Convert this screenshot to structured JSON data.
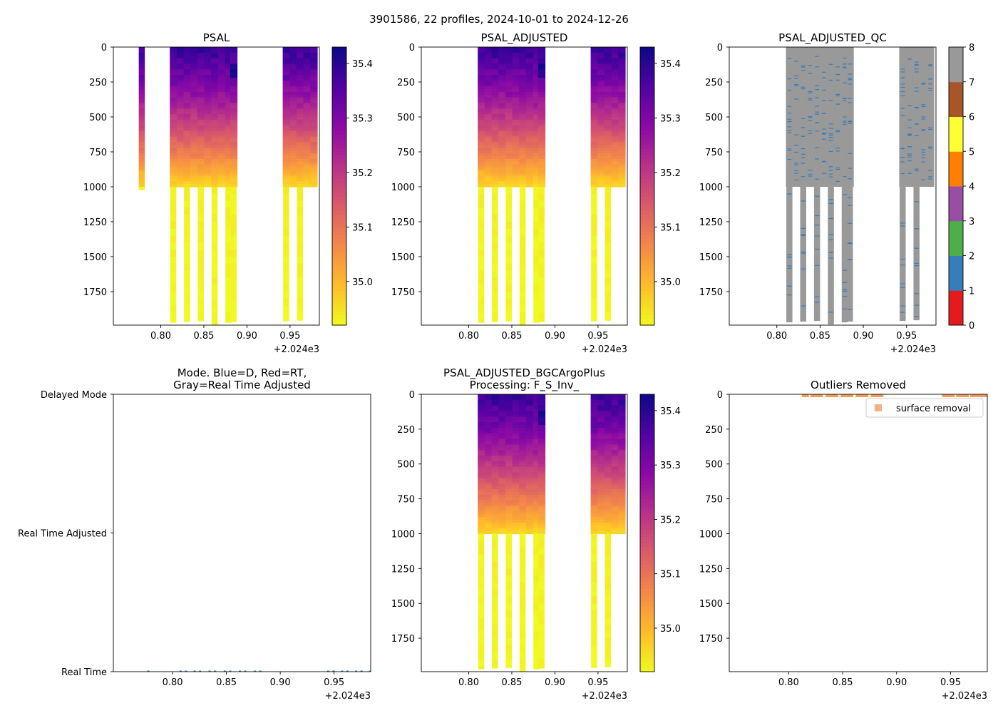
{
  "figure": {
    "suptitle": "3901586, 22 profiles, 2024-10-01 to 2024-12-26"
  },
  "colors": {
    "plasma": [
      "#0d0887",
      "#5302a3",
      "#8b0aa5",
      "#b83289",
      "#db5c68",
      "#f48849",
      "#febd2a",
      "#f0f921"
    ],
    "qc": [
      "#e41a1c",
      "#377eb8",
      "#4daf4a",
      "#984ea3",
      "#ff7f00",
      "#ffff33",
      "#a65628",
      "#f781bf",
      "#999999"
    ],
    "mode_points": "#1f77b4",
    "outlier_points": "#f39a55",
    "outlier_legend_marker": "#f6b183"
  },
  "chart_data": [
    {
      "id": "psal",
      "type": "heatmap",
      "title": "PSAL",
      "xlim": [
        0.745,
        0.984
      ],
      "ylim": [
        0,
        1990
      ],
      "y_inverted": true,
      "xticks": [
        0.8,
        0.85,
        0.9,
        0.95
      ],
      "xtick_labels": [
        "0.80",
        "0.85",
        "0.90",
        "0.95"
      ],
      "x_offset_label": "+2.024e3",
      "yticks": [
        0,
        250,
        500,
        750,
        1000,
        1250,
        1500,
        1750
      ],
      "ytick_labels": [
        "0",
        "250",
        "500",
        "750",
        "1000",
        "1250",
        "1500",
        "1750"
      ],
      "colorbar": {
        "range": [
          34.92,
          35.43
        ],
        "ticks": [
          35.0,
          35.1,
          35.2,
          35.3,
          35.4
        ],
        "tick_labels": [
          "35.0",
          "35.1",
          "35.2",
          "35.3",
          "35.4"
        ]
      },
      "profiles": [
        {
          "x": 0.778,
          "max_depth": 1020
        },
        {
          "x": 0.8145,
          "max_depth": 1000,
          "deep_x": 0.8145,
          "deep_depth": 1970
        },
        {
          "x": 0.8225,
          "max_depth": 1000
        },
        {
          "x": 0.8305,
          "max_depth": 1000,
          "deep_x": 0.8305,
          "deep_depth": 1965
        },
        {
          "x": 0.8385,
          "max_depth": 1000
        },
        {
          "x": 0.8465,
          "max_depth": 1000,
          "deep_x": 0.8465,
          "deep_depth": 1960
        },
        {
          "x": 0.8545,
          "max_depth": 1000
        },
        {
          "x": 0.8625,
          "max_depth": 1000,
          "deep_x": 0.8625,
          "deep_depth": 1985
        },
        {
          "x": 0.8705,
          "max_depth": 1000
        },
        {
          "x": 0.8785,
          "max_depth": 1000,
          "deep_x": 0.8785,
          "deep_depth": 1970
        },
        {
          "x": 0.8845,
          "max_depth": 1000,
          "deep_x": 0.8845,
          "deep_depth": 1965
        },
        {
          "x": 0.9455,
          "max_depth": 1000,
          "deep_x": 0.9455,
          "deep_depth": 1960
        },
        {
          "x": 0.9535,
          "max_depth": 1000
        },
        {
          "x": 0.9615,
          "max_depth": 1000,
          "deep_x": 0.9615,
          "deep_depth": 1955
        },
        {
          "x": 0.9695,
          "max_depth": 1000
        },
        {
          "x": 0.9775,
          "max_depth": 1000
        }
      ]
    },
    {
      "id": "psal_adjusted",
      "type": "heatmap",
      "title": "PSAL_ADJUSTED",
      "xlim": [
        0.745,
        0.984
      ],
      "ylim": [
        0,
        1990
      ],
      "y_inverted": true,
      "xticks": [
        0.8,
        0.85,
        0.9,
        0.95
      ],
      "xtick_labels": [
        "0.80",
        "0.85",
        "0.90",
        "0.95"
      ],
      "x_offset_label": "+2.024e3",
      "yticks": [
        0,
        250,
        500,
        750,
        1000,
        1250,
        1500,
        1750
      ],
      "ytick_labels": [
        "0",
        "250",
        "500",
        "750",
        "1000",
        "1250",
        "1500",
        "1750"
      ],
      "colorbar": {
        "range": [
          34.92,
          35.43
        ],
        "ticks": [
          35.0,
          35.1,
          35.2,
          35.3,
          35.4
        ],
        "tick_labels": [
          "35.0",
          "35.1",
          "35.2",
          "35.3",
          "35.4"
        ]
      }
    },
    {
      "id": "psal_adjusted_qc",
      "type": "heatmap",
      "title": "PSAL_ADJUSTED_QC",
      "xlim": [
        0.745,
        0.984
      ],
      "ylim": [
        0,
        1990
      ],
      "y_inverted": true,
      "xticks": [
        0.8,
        0.85,
        0.9,
        0.95
      ],
      "xtick_labels": [
        "0.80",
        "0.85",
        "0.90",
        "0.95"
      ],
      "x_offset_label": "+2.024e3",
      "yticks": [
        0,
        250,
        500,
        750,
        1000,
        1250,
        1500,
        1750
      ],
      "ytick_labels": [
        "0",
        "250",
        "500",
        "750",
        "1000",
        "1250",
        "1500",
        "1750"
      ],
      "colorbar": {
        "range": [
          0,
          8
        ],
        "ticks": [
          0,
          1,
          2,
          3,
          4,
          5,
          6,
          7,
          8
        ],
        "tick_labels": [
          "0",
          "1",
          "2",
          "3",
          "4",
          "5",
          "6",
          "7",
          "8"
        ]
      },
      "dominant_flag": 8,
      "secondary_flag": 1
    },
    {
      "id": "mode",
      "type": "scatter",
      "title": "Mode. Blue=D, Red=RT,\nGray=Real Time Adjusted",
      "title_lines": [
        "Mode. Blue=D, Red=RT,",
        "Gray=Real Time Adjusted"
      ],
      "xlim": [
        0.745,
        0.984
      ],
      "ylim": [
        0,
        2
      ],
      "xticks": [
        0.8,
        0.85,
        0.9,
        0.95
      ],
      "xtick_labels": [
        "0.80",
        "0.85",
        "0.90",
        "0.95"
      ],
      "x_offset_label": "+2.024e3",
      "yticks": [
        2,
        1,
        0
      ],
      "ytick_labels": [
        "Delayed Mode",
        "Real Time Adjusted",
        "Real Time"
      ],
      "points_x": [
        0.7775,
        0.8075,
        0.8125,
        0.8205,
        0.8255,
        0.8345,
        0.8395,
        0.8485,
        0.8535,
        0.8625,
        0.8675,
        0.8765,
        0.8815,
        0.9445,
        0.9495,
        0.9575,
        0.9625,
        0.9705,
        0.9755,
        0.9835
      ],
      "points_y": [
        0,
        0,
        0,
        0,
        0,
        0,
        0,
        0,
        0,
        0,
        0,
        0,
        0,
        0,
        0,
        0,
        0,
        0,
        0,
        0
      ]
    },
    {
      "id": "bgc_processing",
      "type": "heatmap",
      "title_lines": [
        "PSAL_ADJUSTED_BGCArgoPlus",
        "Processing: F_S_Inv_"
      ],
      "xlim": [
        0.745,
        0.984
      ],
      "ylim": [
        0,
        1990
      ],
      "y_inverted": true,
      "xticks": [
        0.8,
        0.85,
        0.9,
        0.95
      ],
      "xtick_labels": [
        "0.80",
        "0.85",
        "0.90",
        "0.95"
      ],
      "x_offset_label": "+2.024e3",
      "yticks": [
        0,
        250,
        500,
        750,
        1000,
        1250,
        1500,
        1750
      ],
      "ytick_labels": [
        "0",
        "250",
        "500",
        "750",
        "1000",
        "1250",
        "1500",
        "1750"
      ],
      "colorbar": {
        "range": [
          34.92,
          35.43
        ],
        "ticks": [
          35.0,
          35.1,
          35.2,
          35.3,
          35.4
        ],
        "tick_labels": [
          "35.0",
          "35.1",
          "35.2",
          "35.3",
          "35.4"
        ]
      }
    },
    {
      "id": "outliers",
      "type": "scatter",
      "title": "Outliers Removed",
      "xlim": [
        0.745,
        0.984
      ],
      "ylim": [
        0,
        1990
      ],
      "y_inverted": true,
      "xticks": [
        0.8,
        0.85,
        0.9,
        0.95
      ],
      "xtick_labels": [
        "0.80",
        "0.85",
        "0.90",
        "0.95"
      ],
      "x_offset_label": "+2.024e3",
      "yticks": [
        0,
        250,
        500,
        750,
        1000,
        1250,
        1500,
        1750
      ],
      "ytick_labels": [
        "0",
        "250",
        "500",
        "750",
        "1000",
        "1250",
        "1500",
        "1750"
      ],
      "legend": {
        "label": "surface removal",
        "placement": "upper-right"
      },
      "points_x": [
        0.8155,
        0.8235,
        0.8285,
        0.8375,
        0.8425,
        0.8515,
        0.8565,
        0.8655,
        0.8705,
        0.8795,
        0.8845,
        0.9455,
        0.9505,
        0.9585,
        0.9635,
        0.9715,
        0.9765,
        0.9825
      ],
      "points_y": [
        0,
        0,
        0,
        0,
        0,
        0,
        0,
        0,
        0,
        0,
        0,
        0,
        0,
        0,
        0,
        0,
        0,
        0
      ]
    }
  ]
}
